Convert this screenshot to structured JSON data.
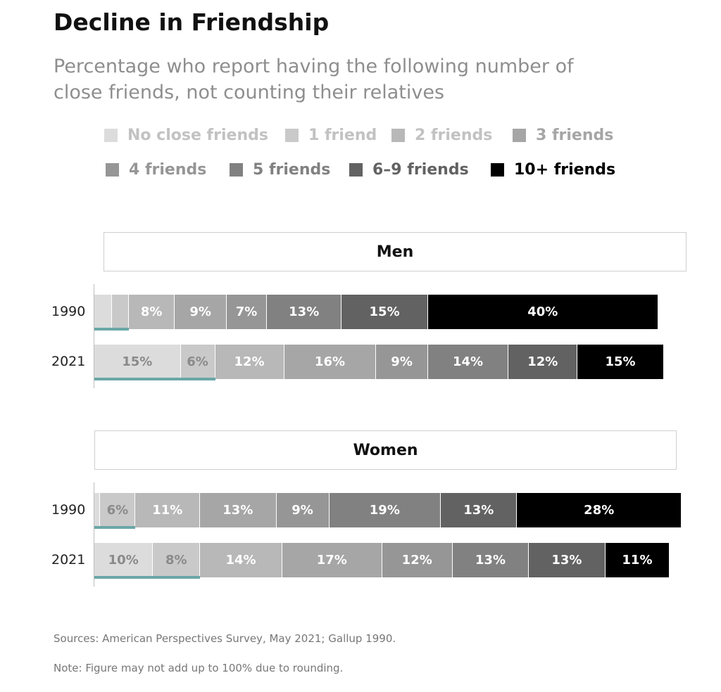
{
  "title": "Decline in Friendship",
  "subtitle": "Percentage who report having the following number of close friends, not counting their relatives",
  "sources": "Sources: American Perspectives Survey, May 2021; Gallup 1990.",
  "note": "Note: Figure may not add up to 100% due to rounding.",
  "chart_data": {
    "type": "bar",
    "orientation": "horizontal",
    "stacked": true,
    "categories": [
      "No close friends",
      "1 friend",
      "2 friends",
      "3 friends",
      "4 friends",
      "5 friends",
      "6–9 friends",
      "10+ friends"
    ],
    "colors": [
      "#dcdcdc",
      "#c9c9c9",
      "#b8b8b8",
      "#a6a6a6",
      "#969696",
      "#818181",
      "#626262",
      "#000000"
    ],
    "label_colors": [
      "#8a8a8a",
      "#8a8a8a",
      "#ffffff",
      "#ffffff",
      "#ffffff",
      "#ffffff",
      "#ffffff",
      "#ffffff"
    ],
    "highlight_color": "#6aa7a7",
    "panels": [
      {
        "name": "Men",
        "rows": [
          {
            "year": "1990",
            "values": [
              3,
              3,
              8,
              9,
              7,
              13,
              15,
              40
            ],
            "labels": [
              "",
              "",
              "8%",
              "9%",
              "7%",
              "13%",
              "15%",
              "40%"
            ]
          },
          {
            "year": "2021",
            "values": [
              15,
              6,
              12,
              16,
              9,
              14,
              12,
              15
            ],
            "labels": [
              "15%",
              "6%",
              "12%",
              "16%",
              "9%",
              "14%",
              "12%",
              "15%"
            ]
          }
        ]
      },
      {
        "name": "Women",
        "rows": [
          {
            "year": "1990",
            "values": [
              1,
              6,
              11,
              13,
              9,
              19,
              13,
              28
            ],
            "labels": [
              "",
              "6%",
              "11%",
              "13%",
              "9%",
              "19%",
              "13%",
              "28%"
            ]
          },
          {
            "year": "2021",
            "values": [
              10,
              8,
              14,
              17,
              12,
              13,
              13,
              11
            ],
            "labels": [
              "10%",
              "8%",
              "14%",
              "17%",
              "12%",
              "13%",
              "13%",
              "11%"
            ]
          }
        ]
      }
    ]
  }
}
